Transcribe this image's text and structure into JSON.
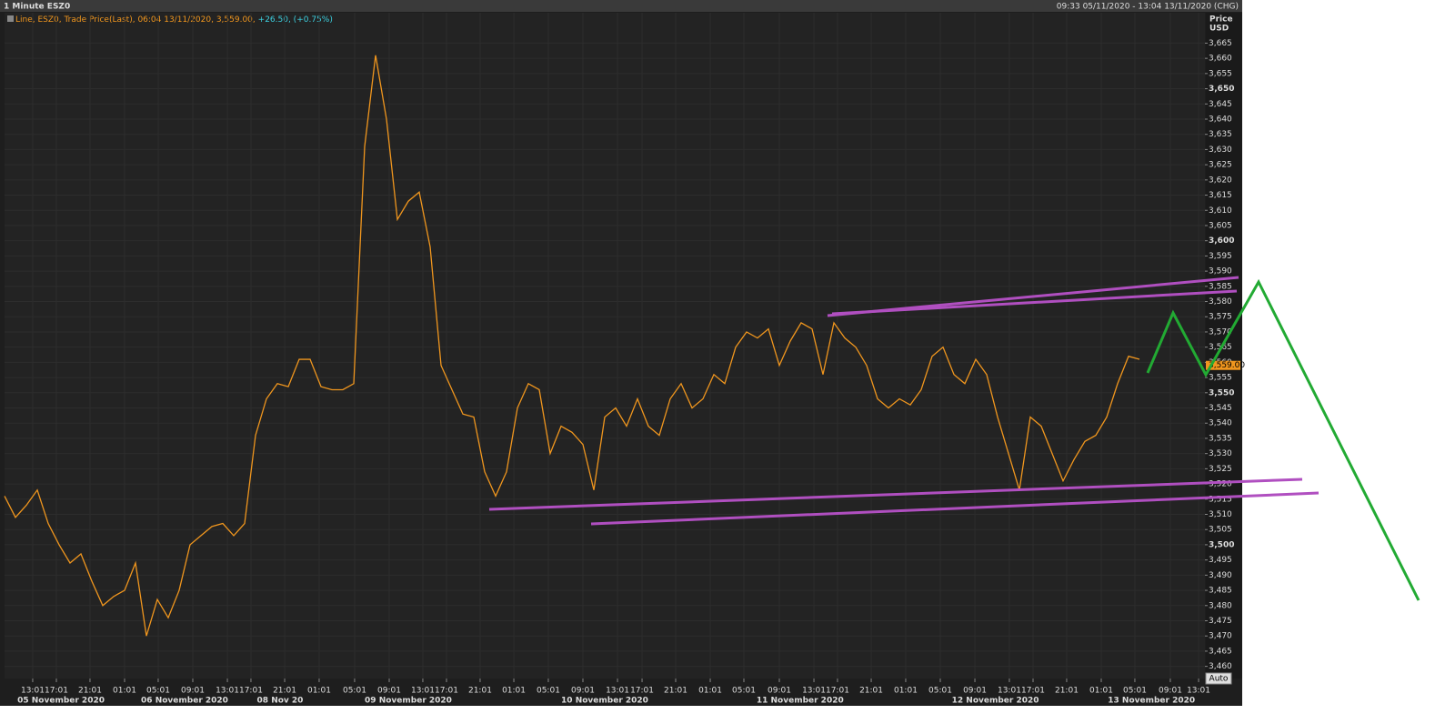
{
  "chart_data": {
    "type": "line",
    "title": "1 Minute ESZ0",
    "range_label": "09:33 05/11/2020 - 13:04 13/11/2020 (CHG)",
    "legend_parts": [
      "Line, ESZ0, Trade Price(Last), 06:04 13/11/2020, 3,559.00,",
      "+26.50, (+0.75%)"
    ],
    "y_axis_label": [
      "Price",
      "USD"
    ],
    "last_price_label": {
      "value": 3559,
      "label": "3,559.00"
    },
    "auto_button": "Auto",
    "series": [
      {
        "name": "ESZ0",
        "color": "#f0961e",
        "values": [
          3516,
          3509,
          3513,
          3518,
          3507,
          3500,
          3494,
          3497,
          3488,
          3480,
          3483,
          3485,
          3494,
          3470,
          3482,
          3476,
          3485,
          3500,
          3503,
          3506,
          3507,
          3503,
          3507,
          3536,
          3548,
          3553,
          3552,
          3561,
          3561,
          3552,
          3551,
          3551,
          3553,
          3631,
          3661,
          3640,
          3607,
          3613,
          3616,
          3598,
          3559,
          3551,
          3543,
          3542,
          3524,
          3516,
          3524,
          3545,
          3553,
          3551,
          3530,
          3539,
          3537,
          3533,
          3518,
          3542,
          3545,
          3539,
          3548,
          3539,
          3536,
          3548,
          3553,
          3545,
          3548,
          3556,
          3553,
          3565,
          3570,
          3568,
          3571,
          3559,
          3567,
          3573,
          3571,
          3556,
          3573,
          3568,
          3565,
          3559,
          3548,
          3545,
          3548,
          3546,
          3551,
          3562,
          3565,
          3556,
          3553,
          3561,
          3556,
          3542,
          3530,
          3518,
          3542,
          3539,
          3530,
          3521,
          3528,
          3534,
          3536,
          3542,
          3553,
          3562,
          3561
        ]
      }
    ],
    "xlim": [
      0,
      110
    ],
    "xticks": [
      {
        "value": 2.58,
        "label": "13:01"
      },
      {
        "value": 4.75,
        "label": "17:01"
      },
      {
        "value": 7.83,
        "label": "21:01"
      },
      {
        "value": 11,
        "label": "01:01"
      },
      {
        "value": 14.08,
        "label": "05:01"
      },
      {
        "value": 17.25,
        "label": "09:01"
      },
      {
        "value": 20.42,
        "label": "13:01"
      },
      {
        "value": 22.58,
        "label": "17:01"
      },
      {
        "value": 25.67,
        "label": "21:01"
      },
      {
        "value": 28.83,
        "label": "01:01"
      },
      {
        "value": 32.08,
        "label": "05:01"
      },
      {
        "value": 35.25,
        "label": "09:01"
      },
      {
        "value": 38.33,
        "label": "13:01"
      },
      {
        "value": 40.5,
        "label": "17:01"
      },
      {
        "value": 43.58,
        "label": "21:01"
      },
      {
        "value": 46.67,
        "label": "01:01"
      },
      {
        "value": 49.83,
        "label": "05:01"
      },
      {
        "value": 53,
        "label": "09:01"
      },
      {
        "value": 56.17,
        "label": "13:01"
      },
      {
        "value": 58.42,
        "label": "17:01"
      },
      {
        "value": 61.5,
        "label": "21:01"
      },
      {
        "value": 64.67,
        "label": "01:01"
      },
      {
        "value": 67.75,
        "label": "05:01"
      },
      {
        "value": 71,
        "label": "09:01"
      },
      {
        "value": 74.17,
        "label": "13:01"
      },
      {
        "value": 76.33,
        "label": "17:01"
      },
      {
        "value": 79.42,
        "label": "21:01"
      },
      {
        "value": 82.58,
        "label": "01:01"
      },
      {
        "value": 85.75,
        "label": "05:01"
      },
      {
        "value": 88.92,
        "label": "09:01"
      },
      {
        "value": 92.08,
        "label": "13:01"
      },
      {
        "value": 94.25,
        "label": "17:01"
      },
      {
        "value": 97.33,
        "label": "21:01"
      },
      {
        "value": 100.5,
        "label": "01:01"
      },
      {
        "value": 103.58,
        "label": "05:01"
      },
      {
        "value": 106.83,
        "label": "09:01"
      },
      {
        "value": 109.42,
        "label": "13:01"
      }
    ],
    "date_labels": [
      {
        "value": 5.17,
        "label": "05 November 2020"
      },
      {
        "value": 16.5,
        "label": "06 November 2020"
      },
      {
        "value": 25.25,
        "label": "08 Nov 20"
      },
      {
        "value": 37,
        "label": "09 November 2020"
      },
      {
        "value": 55,
        "label": "10 November 2020"
      },
      {
        "value": 72.9,
        "label": "11 November 2020"
      },
      {
        "value": 90.8,
        "label": "12 November 2020"
      },
      {
        "value": 105.1,
        "label": "13 November 2020"
      }
    ],
    "ylim": [
      3456,
      3675
    ],
    "yticks": [
      {
        "value": 3460,
        "label": "3,460"
      },
      {
        "value": 3465,
        "label": "3,465"
      },
      {
        "value": 3470,
        "label": "3,470"
      },
      {
        "value": 3475,
        "label": "3,475"
      },
      {
        "value": 3480,
        "label": "3,480"
      },
      {
        "value": 3485,
        "label": "3,485"
      },
      {
        "value": 3490,
        "label": "3,490"
      },
      {
        "value": 3495,
        "label": "3,495"
      },
      {
        "value": 3500,
        "label": "3,500"
      },
      {
        "value": 3505,
        "label": "3,505"
      },
      {
        "value": 3510,
        "label": "3,510"
      },
      {
        "value": 3515,
        "label": "3,515"
      },
      {
        "value": 3520,
        "label": "3,520"
      },
      {
        "value": 3525,
        "label": "3,525"
      },
      {
        "value": 3530,
        "label": "3,530"
      },
      {
        "value": 3535,
        "label": "3,535"
      },
      {
        "value": 3540,
        "label": "3,540"
      },
      {
        "value": 3545,
        "label": "3,545"
      },
      {
        "value": 3550,
        "label": "3,550"
      },
      {
        "value": 3555,
        "label": "3,555"
      },
      {
        "value": 3560,
        "label": "3,560"
      },
      {
        "value": 3565,
        "label": "3,565"
      },
      {
        "value": 3570,
        "label": "3,570"
      },
      {
        "value": 3575,
        "label": "3,575"
      },
      {
        "value": 3580,
        "label": "3,580"
      },
      {
        "value": 3585,
        "label": "3,585"
      },
      {
        "value": 3590,
        "label": "3,590"
      },
      {
        "value": 3595,
        "label": "3,595"
      },
      {
        "value": 3600,
        "label": "3,600"
      },
      {
        "value": 3605,
        "label": "3,605"
      },
      {
        "value": 3610,
        "label": "3,610"
      },
      {
        "value": 3615,
        "label": "3,615"
      },
      {
        "value": 3620,
        "label": "3,620"
      },
      {
        "value": 3625,
        "label": "3,625"
      },
      {
        "value": 3630,
        "label": "3,630"
      },
      {
        "value": 3635,
        "label": "3,635"
      },
      {
        "value": 3640,
        "label": "3,640"
      },
      {
        "value": 3645,
        "label": "3,645"
      },
      {
        "value": 3650,
        "label": "3,650"
      },
      {
        "value": 3655,
        "label": "3,655"
      },
      {
        "value": 3660,
        "label": "3,660"
      },
      {
        "value": 3665,
        "label": "3,665"
      }
    ],
    "grid": true
  }
}
